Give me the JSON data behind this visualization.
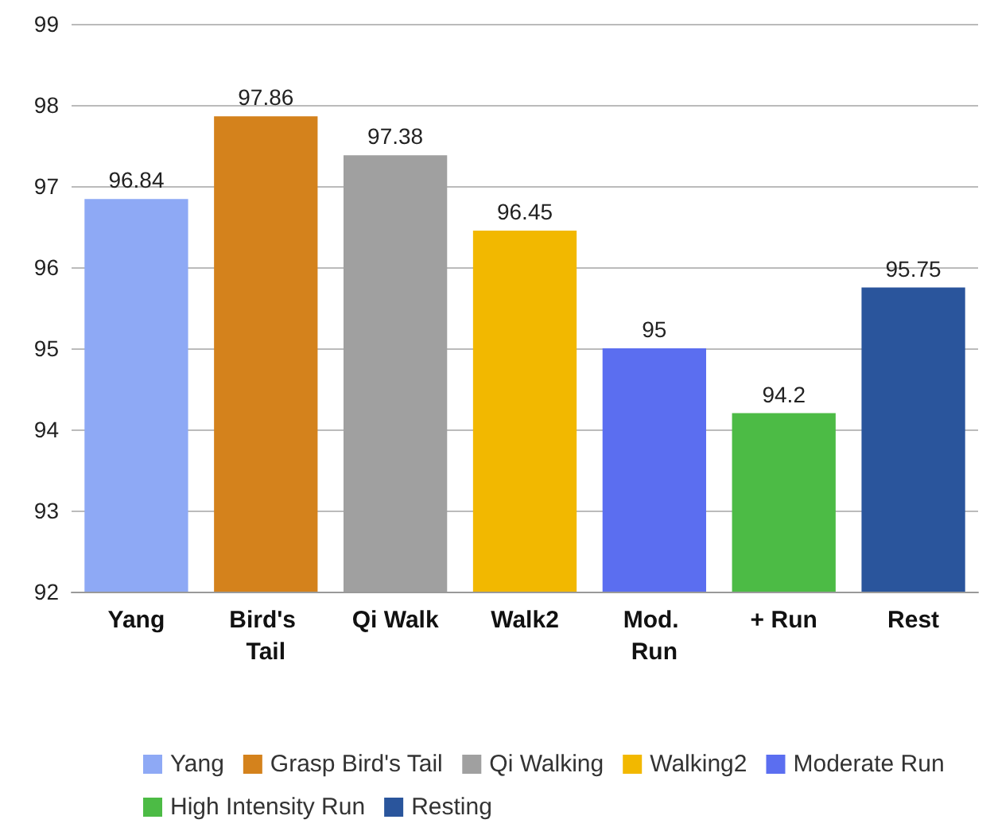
{
  "chart_data": {
    "type": "bar",
    "stacked": true,
    "categories": [
      "Yang",
      "Bird's Tail",
      "Qi Walk",
      "Walk2",
      "Mod. Run",
      "+ Run",
      "Rest"
    ],
    "series": [
      {
        "name": "Yang",
        "color": "#8ea9f5",
        "values": [
          96.84,
          null,
          null,
          null,
          null,
          null,
          null
        ]
      },
      {
        "name": "Grasp Bird's Tail",
        "color": "#d4821c",
        "values": [
          null,
          97.86,
          null,
          null,
          null,
          null,
          null
        ]
      },
      {
        "name": "Qi Walking",
        "color": "#a0a0a0",
        "values": [
          null,
          null,
          97.38,
          null,
          null,
          null,
          null
        ]
      },
      {
        "name": "Walking2",
        "color": "#f2b800",
        "values": [
          null,
          null,
          null,
          96.45,
          null,
          null,
          null
        ]
      },
      {
        "name": "Moderate Run",
        "color": "#5b6ef0",
        "values": [
          null,
          null,
          null,
          null,
          95,
          null,
          null
        ]
      },
      {
        "name": "High Intensity Run",
        "color": "#4cbb45",
        "values": [
          null,
          null,
          null,
          null,
          null,
          94.2,
          null
        ]
      },
      {
        "name": "Resting",
        "color": "#2a559c",
        "values": [
          null,
          null,
          null,
          null,
          null,
          null,
          95.75
        ]
      }
    ],
    "ylim": [
      92,
      99
    ],
    "yticks": [
      92,
      93,
      94,
      95,
      96,
      97,
      98,
      99
    ],
    "grid": "y",
    "legend": "bottom",
    "data_labels": true
  }
}
